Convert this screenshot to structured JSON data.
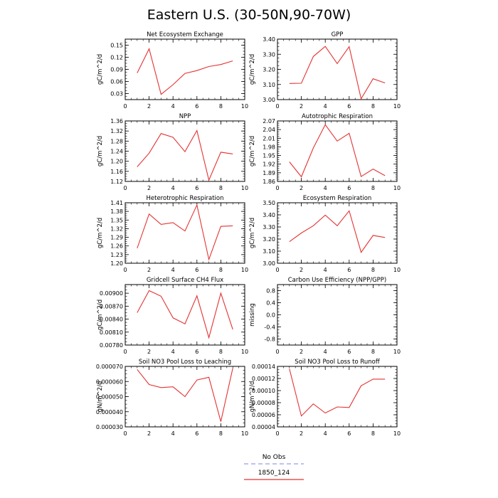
{
  "title": "Eastern U.S. (30-50N,90-70W)",
  "legend": {
    "entries": [
      {
        "label": "No Obs",
        "color": "#9999ee",
        "style": "dashed"
      },
      {
        "label": "1850_124",
        "color": "#e53333",
        "style": "solid"
      }
    ]
  },
  "chart_data": [
    {
      "type": "line",
      "title": "Net Ecosystem Exchange",
      "ylabel": "gC/m^2/d",
      "xlim": [
        0,
        10
      ],
      "xticks": [
        "0",
        "2",
        "4",
        "6",
        "8",
        "10"
      ],
      "ylim": [
        0.015,
        0.165
      ],
      "yticks": [
        "0.03",
        "0.06",
        "0.09",
        "0.12",
        "0.15"
      ],
      "x": [
        1,
        2,
        3,
        4,
        5,
        6,
        7,
        8,
        9
      ],
      "series": [
        {
          "name": "1850_124",
          "color": "#e53333",
          "values": [
            0.081,
            0.141,
            0.028,
            0.052,
            0.08,
            0.087,
            0.097,
            0.102,
            0.111
          ]
        }
      ]
    },
    {
      "type": "line",
      "title": "GPP",
      "ylabel": "gC/m^2/d",
      "xlim": [
        0,
        10
      ],
      "xticks": [
        "0",
        "2",
        "4",
        "6",
        "8",
        "10"
      ],
      "ylim": [
        3.0,
        3.4
      ],
      "yticks": [
        "3.00",
        "3.10",
        "3.20",
        "3.30",
        "3.40"
      ],
      "x": [
        1,
        2,
        3,
        4,
        5,
        6,
        7,
        8,
        9
      ],
      "series": [
        {
          "name": "1850_124",
          "color": "#e53333",
          "values": [
            3.107,
            3.108,
            3.285,
            3.352,
            3.238,
            3.35,
            3.005,
            3.138,
            3.11
          ]
        }
      ]
    },
    {
      "type": "line",
      "title": "NPP",
      "ylabel": "gC/m^2/d",
      "xlim": [
        0,
        10
      ],
      "xticks": [
        "0",
        "2",
        "4",
        "6",
        "8",
        "10"
      ],
      "ylim": [
        1.12,
        1.36
      ],
      "yticks": [
        "1.12",
        "1.16",
        "1.20",
        "1.24",
        "1.28",
        "1.32",
        "1.36"
      ],
      "x": [
        1,
        2,
        3,
        4,
        5,
        6,
        7,
        8,
        9
      ],
      "series": [
        {
          "name": "1850_124",
          "color": "#e53333",
          "values": [
            1.178,
            1.232,
            1.31,
            1.295,
            1.238,
            1.322,
            1.125,
            1.236,
            1.229
          ]
        }
      ]
    },
    {
      "type": "line",
      "title": "Autotrophic Respiration",
      "ylabel": "gC/m^2/d",
      "xlim": [
        0,
        10
      ],
      "xticks": [
        "0",
        "2",
        "4",
        "6",
        "8",
        "10"
      ],
      "ylim": [
        1.86,
        2.07
      ],
      "yticks": [
        "1.86",
        "1.89",
        "1.92",
        "1.95",
        "1.98",
        "2.01",
        "2.04",
        "2.07"
      ],
      "x": [
        1,
        2,
        3,
        4,
        5,
        6,
        7,
        8,
        9
      ],
      "series": [
        {
          "name": "1850_124",
          "color": "#e53333",
          "values": [
            1.928,
            1.876,
            1.976,
            2.057,
            2.0,
            2.027,
            1.877,
            1.903,
            1.88
          ]
        }
      ]
    },
    {
      "type": "line",
      "title": "Heterotrophic Respiration",
      "ylabel": "gC/m^2/d",
      "xlim": [
        0,
        10
      ],
      "xticks": [
        "0",
        "2",
        "4",
        "6",
        "8",
        "10"
      ],
      "ylim": [
        1.2,
        1.41
      ],
      "yticks": [
        "1.20",
        "1.23",
        "1.26",
        "1.29",
        "1.32",
        "1.35",
        "1.38",
        "1.41"
      ],
      "x": [
        1,
        2,
        3,
        4,
        5,
        6,
        7,
        8,
        9
      ],
      "series": [
        {
          "name": "1850_124",
          "color": "#e53333",
          "values": [
            1.252,
            1.371,
            1.335,
            1.341,
            1.312,
            1.402,
            1.213,
            1.328,
            1.33
          ]
        }
      ]
    },
    {
      "type": "line",
      "title": "Ecosystem Respiration",
      "ylabel": "gC/m^2/d",
      "xlim": [
        0,
        10
      ],
      "xticks": [
        "0",
        "2",
        "4",
        "6",
        "8",
        "10"
      ],
      "ylim": [
        3.0,
        3.5
      ],
      "yticks": [
        "3.00",
        "3.10",
        "3.20",
        "3.30",
        "3.40",
        "3.50"
      ],
      "x": [
        1,
        2,
        3,
        4,
        5,
        6,
        7,
        8,
        9
      ],
      "series": [
        {
          "name": "1850_124",
          "color": "#e53333",
          "values": [
            3.178,
            3.25,
            3.31,
            3.398,
            3.31,
            3.433,
            3.09,
            3.23,
            3.213
          ]
        }
      ]
    },
    {
      "type": "line",
      "title": "Gridcell Surface CH4 Flux",
      "ylabel": "gC/m^2/d",
      "xlim": [
        0,
        10
      ],
      "xticks": [
        "0",
        "2",
        "4",
        "6",
        "8",
        "10"
      ],
      "ylim": [
        0.0078,
        0.0092
      ],
      "yticks": [
        "0.00780",
        "0.00810",
        "0.00840",
        "0.00870",
        "0.00900"
      ],
      "x": [
        1,
        2,
        3,
        4,
        5,
        6,
        7,
        8,
        9
      ],
      "series": [
        {
          "name": "1850_124",
          "color": "#e53333",
          "values": [
            0.00855,
            0.00906,
            0.00893,
            0.00843,
            0.00829,
            0.00894,
            0.00797,
            0.009,
            0.00816
          ]
        }
      ]
    },
    {
      "type": "line",
      "title": "Carbon Use Efficiency (NPP/GPP)",
      "ylabel": "missing",
      "xlim": [
        0,
        10
      ],
      "xticks": [
        "0",
        "2",
        "4",
        "6",
        "8",
        "10"
      ],
      "ylim": [
        -1.0,
        1.0
      ],
      "yticks": [
        "-0.8",
        "-0.4",
        "0.0",
        "0.4",
        "0.8"
      ],
      "x": [],
      "series": []
    },
    {
      "type": "line",
      "title": "Soil NO3 Pool Loss to Leaching",
      "ylabel": "gN/m^2/d",
      "xlim": [
        0,
        10
      ],
      "xticks": [
        "0",
        "2",
        "4",
        "6",
        "8",
        "10"
      ],
      "ylim": [
        3e-05,
        7e-05
      ],
      "yticks": [
        "0.000030",
        "0.000040",
        "0.000050",
        "0.000060",
        "0.000070"
      ],
      "x": [
        1,
        2,
        3,
        4,
        5,
        6,
        7,
        8,
        9
      ],
      "series": [
        {
          "name": "1850_124",
          "color": "#e53333",
          "values": [
            6.8e-05,
            5.8e-05,
            5.6e-05,
            5.65e-05,
            5e-05,
            6.1e-05,
            6.28e-05,
            3.35e-05,
            6.88e-05
          ]
        }
      ]
    },
    {
      "type": "line",
      "title": "Soil NO3 Pool Loss to Runoff",
      "ylabel": "gN/m^2/d",
      "xlim": [
        0,
        10
      ],
      "xticks": [
        "0",
        "2",
        "4",
        "6",
        "8",
        "10"
      ],
      "ylim": [
        4e-05,
        0.00014
      ],
      "yticks": [
        "0.00004",
        "0.00006",
        "0.00008",
        "0.00010",
        "0.00012",
        "0.00014"
      ],
      "x": [
        1,
        2,
        3,
        4,
        5,
        6,
        7,
        8,
        9
      ],
      "series": [
        {
          "name": "1850_124",
          "color": "#e53333",
          "values": [
            0.000136,
            5.8e-05,
            7.8e-05,
            6.3e-05,
            7.3e-05,
            7.2e-05,
            0.000108,
            0.000119,
            0.000119
          ]
        }
      ]
    }
  ]
}
